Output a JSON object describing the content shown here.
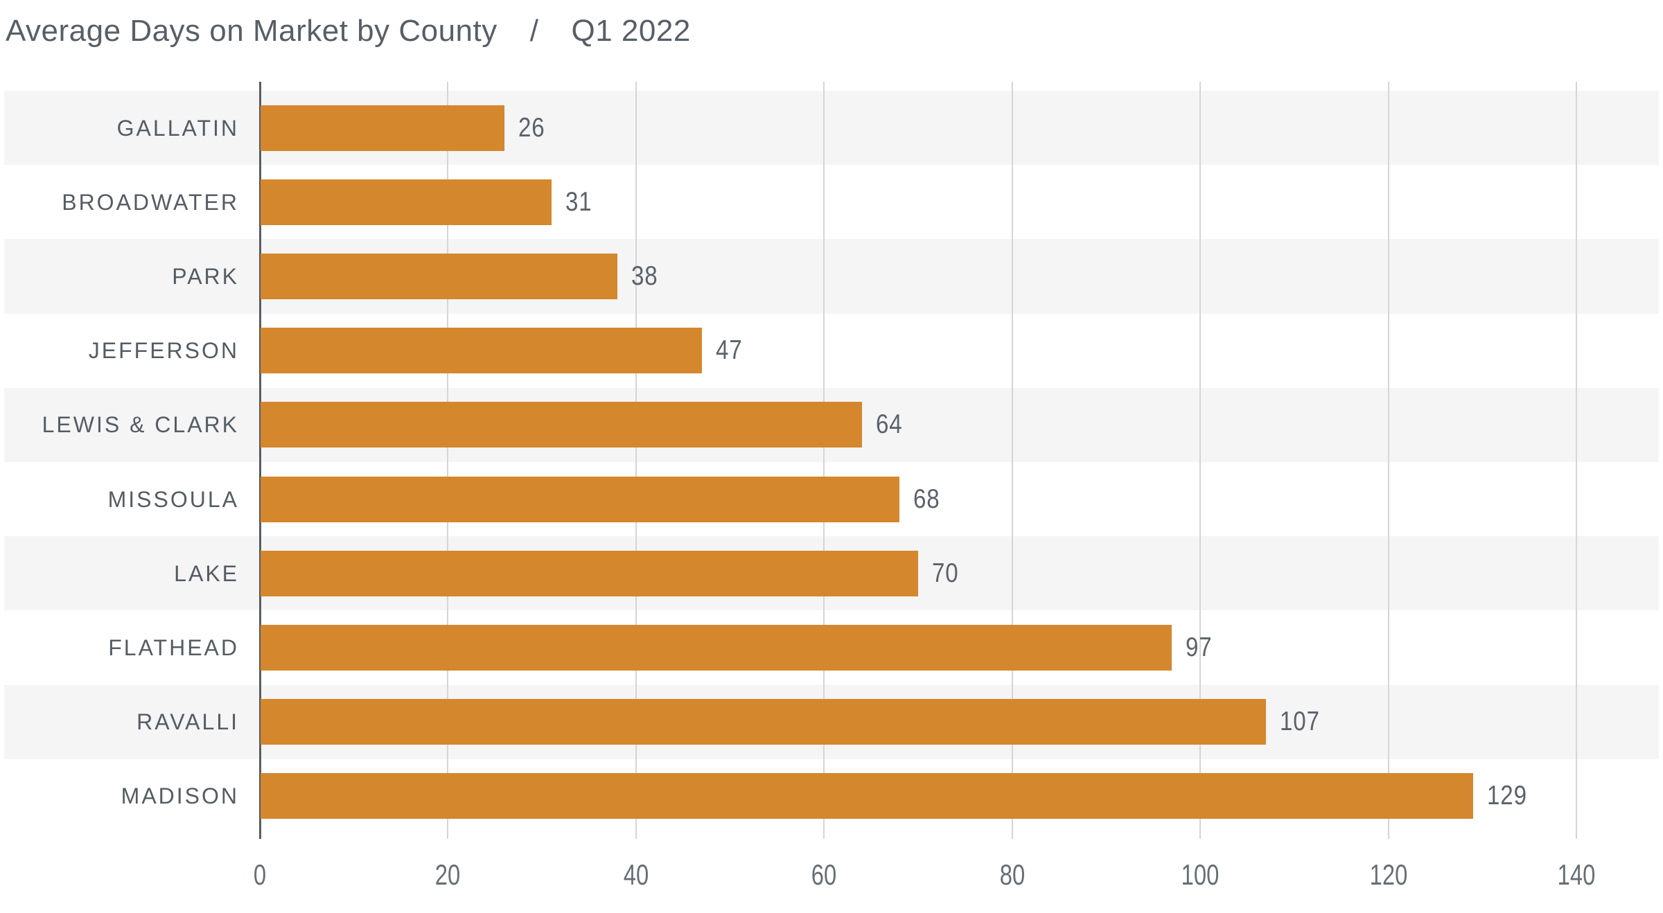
{
  "title": {
    "main": "Average Days on Market by County",
    "separator": "/",
    "period": "Q1 2022"
  },
  "chart_data": {
    "type": "bar",
    "orientation": "horizontal",
    "title": "Average Days on Market by County",
    "subtitle": "Q1 2022",
    "categories": [
      "GALLATIN",
      "BROADWATER",
      "PARK",
      "JEFFERSON",
      "LEWIS & CLARK",
      "MISSOULA",
      "LAKE",
      "FLATHEAD",
      "RAVALLI",
      "MADISON"
    ],
    "values": [
      26,
      31,
      38,
      47,
      64,
      68,
      70,
      97,
      107,
      129
    ],
    "value_labels": [
      "26",
      "31",
      "38",
      "47",
      "64",
      "68",
      "70",
      "97",
      "107",
      "129"
    ],
    "xlabel": "",
    "ylabel": "",
    "xlim": [
      0,
      140
    ],
    "x_ticks": [
      0,
      20,
      40,
      60,
      80,
      100,
      120,
      140
    ],
    "x_tick_labels": [
      "0",
      "20",
      "40",
      "60",
      "80",
      "100",
      "120",
      "140"
    ],
    "grid": "vertical-gridlines-every-20",
    "legend": "none",
    "row_striping": "alternate-rows-shaded",
    "colors": {
      "bar": "#d4872d",
      "row_stripe": "#f5f5f6",
      "gridline": "#d5d5d5",
      "axis_line": "#565d63",
      "title_text": "#575f66",
      "category_text": "#545c63",
      "value_text": "#5a626a",
      "tick_text": "#666e75",
      "background": "#ffffff"
    }
  }
}
